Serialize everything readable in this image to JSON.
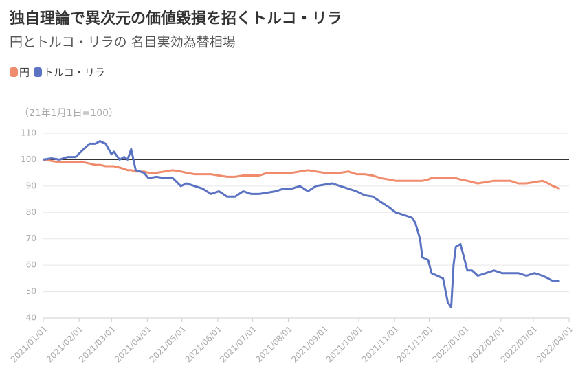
{
  "chart_data": {
    "type": "line",
    "title": "独自理論で異次元の価値毀損を招くトルコ・リラ",
    "subtitle": "円とトルコ・リラの 名目実効為替相場",
    "y_label": "（21年1月1日=100）",
    "x": [
      "2021/01/01",
      "2021/01/08",
      "2021/01/15",
      "2021/01/22",
      "2021/01/29",
      "2021/02/05",
      "2021/02/10",
      "2021/02/15",
      "2021/02/19",
      "2021/02/24",
      "2021/03/01",
      "2021/03/03",
      "2021/03/08",
      "2021/03/12",
      "2021/03/15",
      "2021/03/18",
      "2021/03/22",
      "2021/03/29",
      "2021/04/02",
      "2021/04/09",
      "2021/04/16",
      "2021/04/23",
      "2021/04/30",
      "2021/05/05",
      "2021/05/12",
      "2021/05/19",
      "2021/05/26",
      "2021/06/02",
      "2021/06/09",
      "2021/06/16",
      "2021/06/23",
      "2021/06/30",
      "2021/07/07",
      "2021/07/14",
      "2021/07/21",
      "2021/07/28",
      "2021/08/04",
      "2021/08/11",
      "2021/08/18",
      "2021/08/25",
      "2021/09/01",
      "2021/09/08",
      "2021/09/15",
      "2021/09/22",
      "2021/09/29",
      "2021/10/06",
      "2021/10/13",
      "2021/10/20",
      "2021/10/27",
      "2021/11/02",
      "2021/11/09",
      "2021/11/16",
      "2021/11/19",
      "2021/11/23",
      "2021/11/25",
      "2021/11/30",
      "2021/12/03",
      "2021/12/08",
      "2021/12/13",
      "2021/12/17",
      "2021/12/20",
      "2021/12/22",
      "2021/12/24",
      "2021/12/28",
      "2022/01/03",
      "2022/01/07",
      "2022/01/12",
      "2022/01/19",
      "2022/01/26",
      "2022/02/02",
      "2022/02/09",
      "2022/02/16",
      "2022/02/23",
      "2022/03/02",
      "2022/03/09",
      "2022/03/14",
      "2022/03/18",
      "2022/03/24"
    ],
    "series": [
      {
        "name": "円",
        "color": "#f08c6c",
        "values": [
          100,
          99.5,
          99,
          99,
          99,
          99,
          98.5,
          98,
          98,
          97.5,
          97.5,
          97.5,
          97,
          96.5,
          96,
          96,
          95.5,
          95.5,
          95,
          95,
          95.5,
          96,
          95.5,
          95,
          94.5,
          94.5,
          94.5,
          94,
          93.5,
          93.5,
          94,
          94,
          94,
          95,
          95,
          95,
          95,
          95.5,
          96,
          95.5,
          95,
          95,
          95,
          95.5,
          94.5,
          94.5,
          94,
          93,
          92.5,
          92,
          92,
          92,
          92,
          92,
          92,
          92.5,
          93,
          93,
          93,
          93,
          93,
          93,
          93,
          92.5,
          92,
          91.5,
          91,
          91.5,
          92,
          92,
          92,
          91,
          91,
          91.5,
          92,
          91,
          90,
          89
        ]
      },
      {
        "name": "トルコ・リラ",
        "color": "#5b73c2",
        "values": [
          100,
          100.5,
          100,
          101,
          101,
          104,
          106,
          106,
          107,
          106,
          102,
          103,
          100,
          101,
          100,
          104,
          96,
          95,
          93,
          93.5,
          93,
          93,
          90,
          91,
          90,
          89,
          87,
          88,
          86,
          86,
          88,
          87,
          87,
          87.5,
          88,
          89,
          89,
          90,
          88,
          90,
          90.5,
          91,
          90,
          89,
          88,
          86.5,
          86,
          84,
          82,
          80,
          79,
          78,
          76,
          70,
          63,
          62,
          57,
          56,
          55,
          46,
          44,
          60,
          67,
          68,
          58,
          58,
          56,
          57,
          58,
          57,
          57,
          57,
          56,
          57,
          56,
          55,
          54,
          54
        ]
      }
    ],
    "xlim": [
      "2021/01/01",
      "2022/04/01"
    ],
    "xticks": [
      "2021/01/01",
      "2021/02/01",
      "2021/03/01",
      "2021/04/01",
      "2021/05/01",
      "2021/06/01",
      "2021/07/01",
      "2021/08/01",
      "2021/09/01",
      "2021/10/01",
      "2021/11/01",
      "2021/12/01",
      "2022/01/01",
      "2022/02/01",
      "2022/03/01",
      "2022/04/01"
    ],
    "ylim": [
      40,
      110
    ],
    "yticks": [
      40,
      50,
      60,
      70,
      80,
      90,
      100,
      110
    ],
    "reference_line": 100,
    "grid": true
  }
}
